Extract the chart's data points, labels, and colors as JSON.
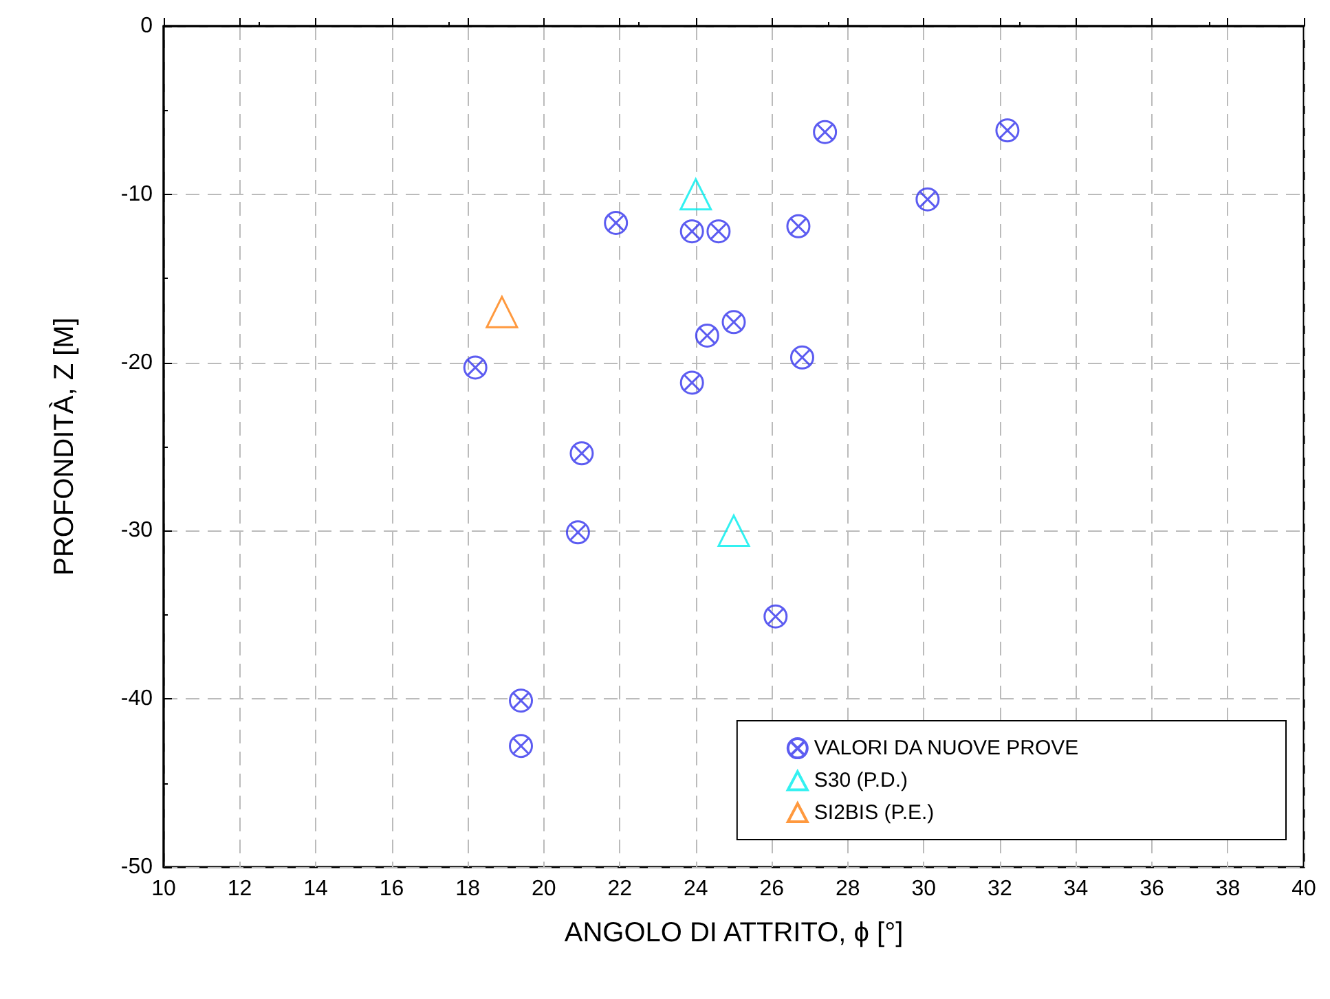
{
  "chart_data": {
    "type": "scatter",
    "xlabel": "ANGOLO DI ATTRITO, ϕ [°]",
    "ylabel": "PROFONDITÀ, Z [M]",
    "xlim": [
      10,
      40
    ],
    "xticks": [
      10,
      12,
      14,
      16,
      18,
      20,
      22,
      24,
      26,
      28,
      30,
      32,
      34,
      36,
      38,
      40
    ],
    "ylim": [
      -50,
      0
    ],
    "yticks": [
      -50,
      -40,
      -30,
      -20,
      -10,
      0
    ],
    "grid": true,
    "legend": "bottom right",
    "series": [
      {
        "name": "VALORI DA NUOVE PROVE",
        "color": "#3333ee",
        "marker": "cross",
        "x": [
          21.9,
          23.9,
          24.6,
          26.7,
          27.4,
          30.1,
          32.2,
          18.2,
          24.3,
          25.0,
          26.8,
          23.9,
          21.0,
          20.9,
          26.1,
          19.4,
          19.4
        ],
        "values": [
          -11.7,
          -12.2,
          -12.2,
          -11.9,
          -6.3,
          -10.3,
          -6.2,
          -20.3,
          -18.4,
          -17.6,
          -19.7,
          -21.2,
          -25.4,
          -30.1,
          -35.1,
          -40.1,
          -42.8
        ]
      },
      {
        "name": "S30 (P.D.)",
        "color": "#00eeee",
        "marker": "triangle",
        "x": [
          24,
          25
        ],
        "values": [
          -10,
          -30
        ]
      },
      {
        "name": "SI2BIS (P.E.)",
        "color": "#ff7f0e",
        "marker": "triangle",
        "x": [
          18.9
        ],
        "values": [
          -17
        ]
      }
    ]
  }
}
